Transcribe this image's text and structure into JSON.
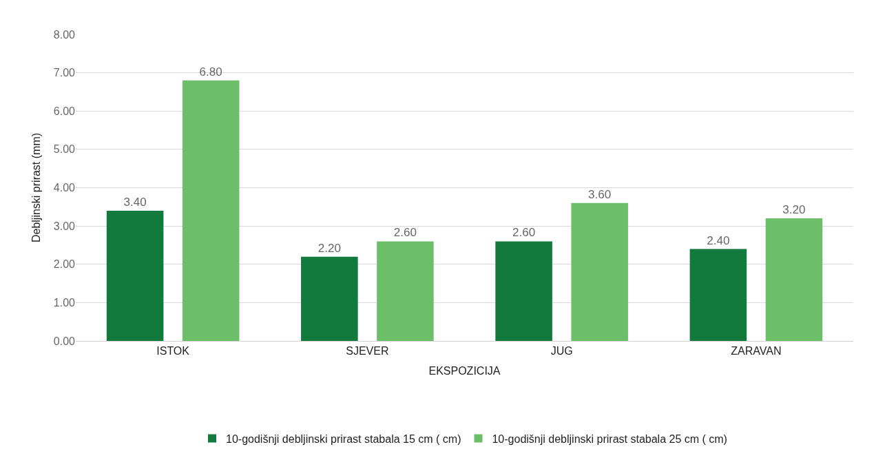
{
  "chart_data": {
    "type": "bar",
    "xlabel": "EKSPOZICIJA",
    "ylabel": "Debljinski prirast (mm)",
    "categories": [
      "ISTOK",
      "SJEVER",
      "JUG",
      "ZARAVAN"
    ],
    "series": [
      {
        "name": "10-godišnji debljinski prirast stabala 15 cm ( cm)",
        "color": "#117a3c",
        "values": [
          3.4,
          2.2,
          2.6,
          2.4
        ],
        "value_labels": [
          "3.40",
          "2.20",
          "2.60",
          "2.40"
        ]
      },
      {
        "name": "10-godišnji debljinski prirast stabala 25 cm ( cm)",
        "color": "#6cbf68",
        "values": [
          6.8,
          2.6,
          3.6,
          3.2
        ],
        "value_labels": [
          "6.80",
          "2.60",
          "3.60",
          "3.20"
        ]
      }
    ],
    "ylim": [
      0,
      8
    ],
    "yticks": [
      {
        "value": 0,
        "label": "0.00"
      },
      {
        "value": 1,
        "label": "1.00"
      },
      {
        "value": 2,
        "label": "2.00"
      },
      {
        "value": 3,
        "label": "3.00"
      },
      {
        "value": 4,
        "label": "4.00"
      },
      {
        "value": 5,
        "label": "5.00"
      },
      {
        "value": 6,
        "label": "6.00"
      },
      {
        "value": 7,
        "label": "7.00"
      },
      {
        "value": 8,
        "label": "8.00"
      }
    ],
    "grid": "y",
    "legend": "bottom"
  }
}
